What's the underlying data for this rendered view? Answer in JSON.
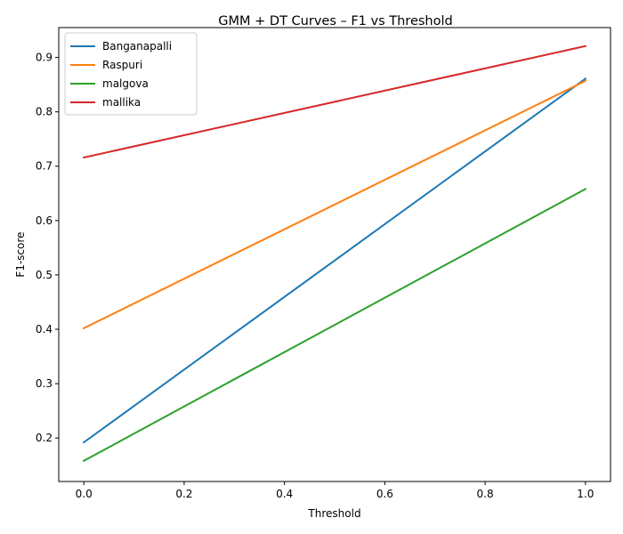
{
  "chart_data": {
    "type": "line",
    "title": "GMM + DT Curves – F1 vs Threshold",
    "xlabel": "Threshold",
    "ylabel": "F1-score",
    "xlim": [
      -0.05,
      1.05
    ],
    "ylim": [
      0.12,
      0.955
    ],
    "xticks": [
      0.0,
      0.2,
      0.4,
      0.6,
      0.8,
      1.0
    ],
    "xtick_labels": [
      "0.0",
      "0.2",
      "0.4",
      "0.6",
      "0.8",
      "1.0"
    ],
    "yticks": [
      0.2,
      0.3,
      0.4,
      0.5,
      0.6,
      0.7,
      0.8,
      0.9
    ],
    "ytick_labels": [
      "0.2",
      "0.3",
      "0.4",
      "0.5",
      "0.6",
      "0.7",
      "0.8",
      "0.9"
    ],
    "grid": false,
    "legend_position": "top-left",
    "x": [
      0.0,
      1.0
    ],
    "series": [
      {
        "name": "Banganapalli",
        "color": "#1f77b4",
        "values": [
          0.192,
          0.861
        ]
      },
      {
        "name": "Raspuri",
        "color": "#ff7f0e",
        "values": [
          0.402,
          0.857
        ]
      },
      {
        "name": "malgova",
        "color": "#2ca02c",
        "values": [
          0.158,
          0.658
        ]
      },
      {
        "name": "mallika",
        "color": "#d62728",
        "values": [
          0.716,
          0.921
        ]
      }
    ]
  }
}
